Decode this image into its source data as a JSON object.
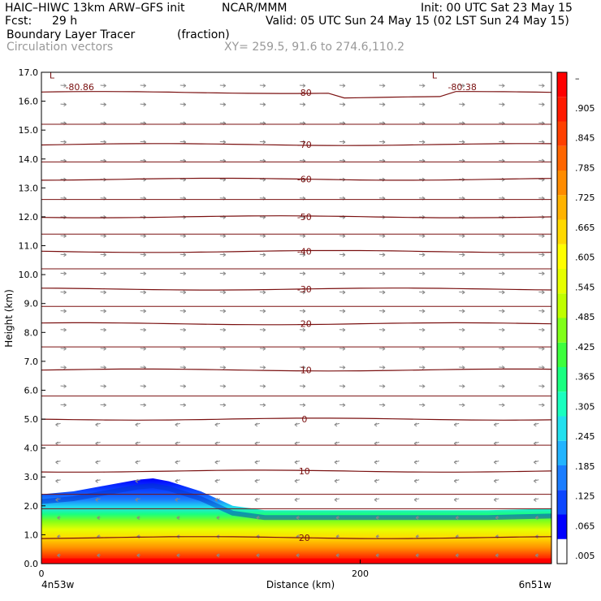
{
  "header": {
    "model": "HAIC–HIWC 13km ARW–GFS init",
    "org": "NCAR/MMM",
    "init": "Init: 00 UTC Sat 23 May 15",
    "fcst_label": "Fcst:",
    "fcst_value": "29 h",
    "valid": "Valid: 05 UTC Sun 24 May 15 (02 LST Sun 24 May 15)",
    "field": "Boundary Layer Tracer",
    "field_units": "(fraction)",
    "vectors": "Circulation vectors",
    "xy": "XY= 259.5, 91.6 to 274.6,110.2"
  },
  "colors": {
    "contour": "#7a1010",
    "vector": "#888888",
    "colorbar": [
      "#ffffff",
      "#0000ff",
      "#0d47ff",
      "#1a7dff",
      "#22b4ff",
      "#22e0ee",
      "#19ffbf",
      "#19ff80",
      "#3dff3d",
      "#80ff19",
      "#bfff00",
      "#e6ff00",
      "#ffff00",
      "#ffd900",
      "#ffb300",
      "#ff8c00",
      "#ff6600",
      "#ff4000",
      "#ff1a00",
      "#ff0000"
    ]
  },
  "chart_data": {
    "type": "heatmap",
    "xlabel": "Distance (km)",
    "ylabel": "Height (km)",
    "xlim": [
      0,
      320
    ],
    "ylim": [
      0.0,
      17.0
    ],
    "x_ticks": [
      {
        "value": 0,
        "label": "0"
      },
      {
        "value": 200,
        "label": "200"
      }
    ],
    "x_endpoints": {
      "left": "4n53w",
      "right": "6n51w"
    },
    "y_ticks": [
      "0.0",
      "1.0",
      "2.0",
      "3.0",
      "4.0",
      "5.0",
      "6.0",
      "7.0",
      "8.0",
      "9.0",
      "10.0",
      "11.0",
      "12.0",
      "13.0",
      "14.0",
      "15.0",
      "16.0",
      "17.0"
    ],
    "colorbar_labels": [
      ".005",
      ".065",
      ".125",
      ".185",
      ".245",
      ".305",
      ".365",
      ".425",
      ".485",
      ".545",
      ".605",
      ".665",
      ".725",
      ".785",
      ".845",
      ".905",
      "–"
    ],
    "tracer_top_profile": {
      "x_km": [
        0,
        20,
        40,
        60,
        70,
        80,
        100,
        120,
        140,
        160,
        200,
        240,
        280,
        320
      ],
      "height_km": [
        2.4,
        2.5,
        2.7,
        2.9,
        2.95,
        2.85,
        2.5,
        2.0,
        1.85,
        1.85,
        1.85,
        1.85,
        1.85,
        1.9
      ]
    },
    "contours": [
      {
        "label": "0",
        "height_km": 5.0
      },
      {
        "label": "10",
        "height_km": 3.2
      },
      {
        "label": "20",
        "height_km": 0.9
      },
      {
        "label": "-10",
        "height_km": 6.7
      },
      {
        "label": "-20",
        "height_km": 8.3
      },
      {
        "label": "-30",
        "height_km": 9.5
      },
      {
        "label": "-40",
        "height_km": 10.8
      },
      {
        "label": "-50",
        "height_km": 12.0
      },
      {
        "label": "-60",
        "height_km": 13.3
      },
      {
        "label": "-70",
        "height_km": 14.5
      },
      {
        "label": "-80",
        "height_km": 16.3
      }
    ],
    "extrema_labels": [
      {
        "text": "L",
        "x_km": 5,
        "height_km": 16.9
      },
      {
        "text": "-80.86",
        "x_km": 15,
        "height_km": 16.5
      },
      {
        "text": "L",
        "x_km": 245,
        "height_km": 16.9
      },
      {
        "text": "-80.38",
        "x_km": 255,
        "height_km": 16.5
      }
    ]
  }
}
